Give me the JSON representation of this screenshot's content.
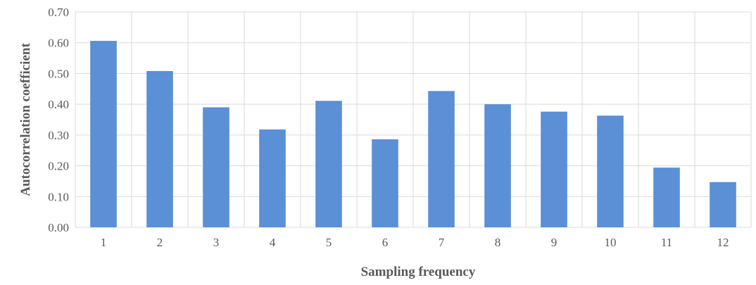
{
  "chart_data": {
    "type": "bar",
    "title": "",
    "xlabel": "Sampling frequency",
    "ylabel": "Autocorrelation coefficient",
    "categories": [
      "1",
      "2",
      "3",
      "4",
      "5",
      "6",
      "7",
      "8",
      "9",
      "10",
      "11",
      "12"
    ],
    "values": [
      0.606,
      0.508,
      0.39,
      0.318,
      0.411,
      0.286,
      0.443,
      0.4,
      0.376,
      0.363,
      0.194,
      0.147
    ],
    "ylim": [
      0,
      0.7
    ],
    "yticks": [
      "0.00",
      "0.10",
      "0.20",
      "0.30",
      "0.40",
      "0.50",
      "0.60",
      "0.70"
    ],
    "grid": true,
    "legend": "none",
    "colors": {
      "bar": "#5B8FD6",
      "grid": "#D9D9D9",
      "text": "#595959"
    }
  }
}
